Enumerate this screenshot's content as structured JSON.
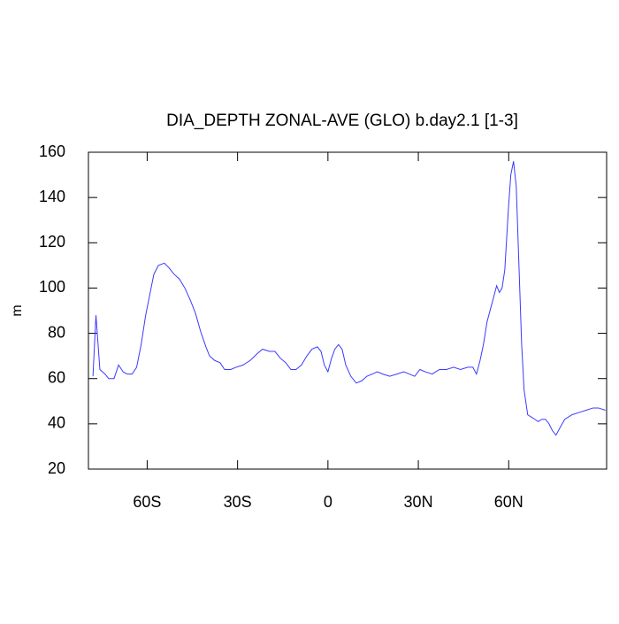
{
  "chart_data": {
    "type": "line",
    "title": "DIA_DEPTH ZONAL-AVE (GLO) b.day2.1 [1-3]",
    "y_label": "m",
    "x": [
      -78.0,
      -77.0,
      -75.7,
      -74.0,
      -72.8,
      -71.0,
      -69.5,
      -68.0,
      -66.6,
      -65.0,
      -63.5,
      -62.0,
      -60.5,
      -59.0,
      -57.8,
      -56.3,
      -54.3,
      -52.8,
      -51.0,
      -49.3,
      -47.5,
      -45.8,
      -44.0,
      -42.3,
      -40.5,
      -39.3,
      -37.6,
      -35.8,
      -34.3,
      -32.3,
      -30.5,
      -28.2,
      -25.8,
      -23.5,
      -21.7,
      -19.4,
      -17.6,
      -15.8,
      -14.0,
      -12.3,
      -10.6,
      -8.8,
      -7.0,
      -5.3,
      -3.5,
      -2.3,
      -1.2,
      0.0,
      1.2,
      2.3,
      3.5,
      4.7,
      5.9,
      7.6,
      9.4,
      11.2,
      12.9,
      14.7,
      16.4,
      18.2,
      20.5,
      22.9,
      25.2,
      27.0,
      28.8,
      30.5,
      32.3,
      34.6,
      37.0,
      39.3,
      41.7,
      44.0,
      46.4,
      48.1,
      49.3,
      50.5,
      51.6,
      52.8,
      54.0,
      55.2,
      56.0,
      56.9,
      57.8,
      58.7,
      59.9,
      60.7,
      61.6,
      62.5,
      63.4,
      64.3,
      65.1,
      66.3,
      67.5,
      68.7,
      69.8,
      71.0,
      72.2,
      73.4,
      74.5,
      75.7,
      76.9,
      78.6,
      81.0,
      83.3,
      85.7,
      88.0,
      89.8,
      92.1
    ],
    "series": [
      {
        "color": "#3a3aff",
        "values": [
          61,
          88,
          64,
          62,
          60,
          60,
          66,
          63,
          62,
          62,
          65,
          75,
          88,
          98,
          106,
          110,
          111,
          109,
          106,
          104,
          100,
          95,
          89,
          81,
          74,
          70,
          68,
          67,
          64,
          64,
          65,
          66,
          68,
          71,
          73,
          72,
          72,
          69,
          67,
          64,
          64,
          66,
          70,
          73,
          74,
          72,
          66,
          63,
          69,
          73,
          75,
          73,
          66,
          61,
          58,
          59,
          61,
          62,
          63,
          62,
          61,
          62,
          63,
          62,
          61,
          64,
          63,
          62,
          64,
          64,
          65,
          64,
          65,
          65,
          62,
          68,
          75,
          85,
          91,
          97,
          101,
          98,
          100,
          108,
          135,
          150,
          156,
          145,
          110,
          75,
          55,
          44,
          43,
          42,
          41,
          42,
          42,
          40,
          37,
          35,
          38,
          42,
          44,
          45,
          46,
          47,
          47,
          46
        ]
      }
    ],
    "xlim": [
      -79.5,
      92.5
    ],
    "ylim": [
      20,
      160
    ],
    "xticks": [
      {
        "value": -60,
        "label": "60S"
      },
      {
        "value": -30,
        "label": "30S"
      },
      0,
      {
        "value": 30,
        "label": "30N"
      },
      {
        "value": 60,
        "label": "60N"
      }
    ],
    "yticks": [
      20,
      40,
      60,
      80,
      100,
      120,
      140,
      160
    ]
  }
}
